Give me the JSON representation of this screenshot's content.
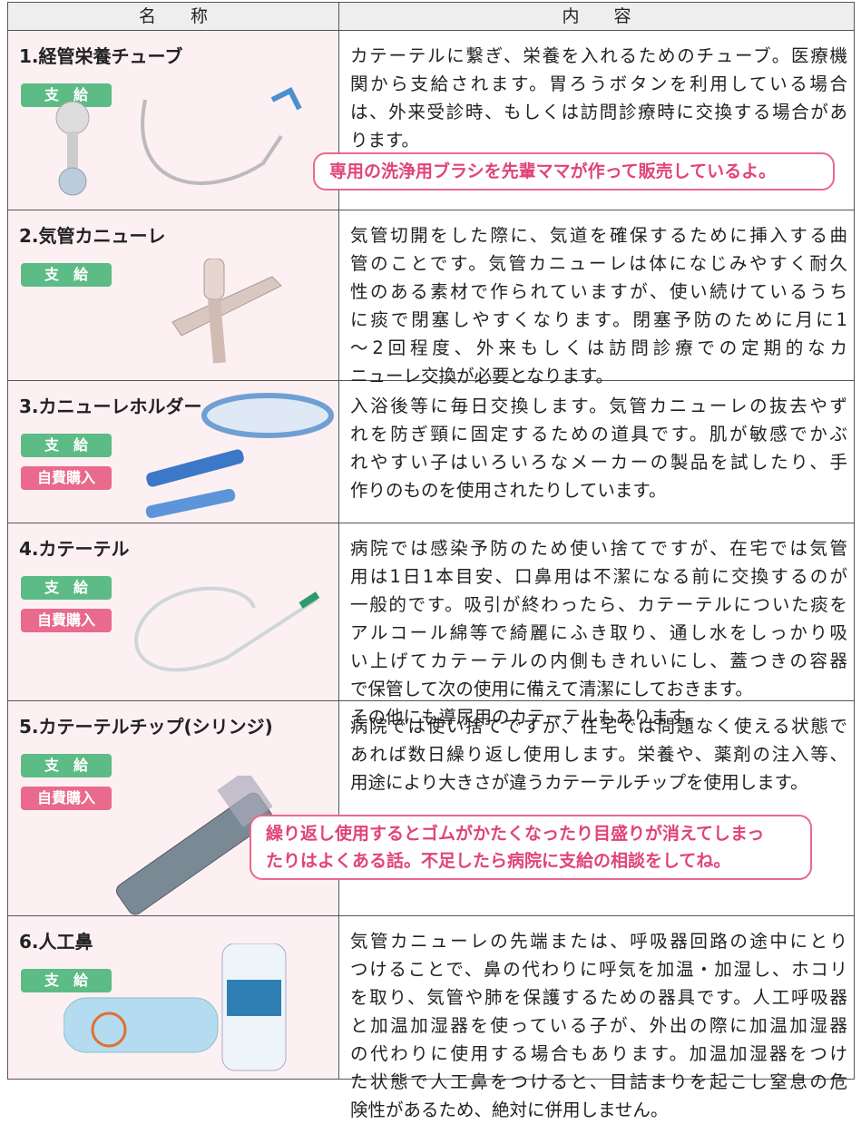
{
  "header": {
    "name": "名　　称",
    "content": "内　　容"
  },
  "rows": [
    {
      "title": "1.経管栄養チューブ",
      "badges": [
        "支　給"
      ],
      "paragraphs": [
        [
          "カテーテルに繋ぎ、栄養を入れるためのチューブ。医療機",
          "関から支給されます。胃ろうボタンを利用している場合",
          "は、外来受診時、もしくは訪問診療時に交換する場合があ",
          "ります。"
        ]
      ],
      "bubble": [
        "専用の洗浄用ブラシを先輩ママが作って販売しているよ。"
      ]
    },
    {
      "title": "2.気管カニューレ",
      "badges": [
        "支　給"
      ],
      "paragraphs": [
        [
          "気管切開をした際に、気道を確保するために挿入する曲",
          "管のことです。気管カニューレは体になじみやすく耐久",
          "性のある素材で作られていますが、使い続けているうち",
          "に痰で閉塞しやすくなります。閉塞予防のために月に1",
          "～2回程度、外来もしくは訪問診療での定期的なカ",
          "ニューレ交換が必要となります。"
        ]
      ]
    },
    {
      "title": "3.カニューレホルダー",
      "badges": [
        "支　給",
        "自費購入"
      ],
      "paragraphs": [
        [
          "入浴後等に毎日交換します。気管カニューレの抜去やず",
          "れを防ぎ頸に固定するための道具です。肌が敏感でかぶ",
          "れやすい子はいろいろなメーカーの製品を試したり、手",
          "作りのものを使用されたりしています。"
        ]
      ]
    },
    {
      "title": "4.カテーテル",
      "badges": [
        "支　給",
        "自費購入"
      ],
      "paragraphs": [
        [
          "病院では感染予防のため使い捨てですが、在宅では気管",
          "用は1日1本目安、口鼻用は不潔になる前に交換するのが",
          "一般的です。吸引が終わったら、カテーテルについた痰を",
          "アルコール綿等で綺麗にふき取り、通し水をしっかり吸",
          "い上げてカテーテルの内側もきれいにし、蓋つきの容器",
          "で保管して次の使用に備えて清潔にしておきます。"
        ],
        [
          "その他にも導尿用のカテーテルもあります。"
        ]
      ]
    },
    {
      "title": "5.カテーテルチップ(シリンジ)",
      "badges": [
        "支　給",
        "自費購入"
      ],
      "paragraphs": [
        [
          "病院では使い捨てですが、在宅では問題なく使える状態で",
          "あれば数日繰り返し使用します。栄養や、薬剤の注入等、",
          "用途により大きさが違うカテーテルチップを使用します。"
        ]
      ],
      "bubble": [
        "繰り返し使用するとゴムがかたくなったり目盛りが消えてしまっ",
        "たりはよくある話。不足したら病院に支給の相談をしてね。"
      ]
    },
    {
      "title": "6.人工鼻",
      "badges": [
        "支　給"
      ],
      "paragraphs": [
        [
          "気管カニューレの先端または、呼吸器回路の途中にとり",
          "つけることで、鼻の代わりに呼気を加温・加湿し、ホコリ",
          "を取り、気管や肺を保護するための器具です。人工呼吸器",
          "と加温加湿器を使っている子が、外出の際に加温加湿器",
          "の代わりに使用する場合もあります。加温加湿器をつけ",
          "た状態で人工鼻をつけると、目詰まりを起こし窒息の危",
          "険性があるため、絶対に併用しません。"
        ]
      ]
    }
  ]
}
